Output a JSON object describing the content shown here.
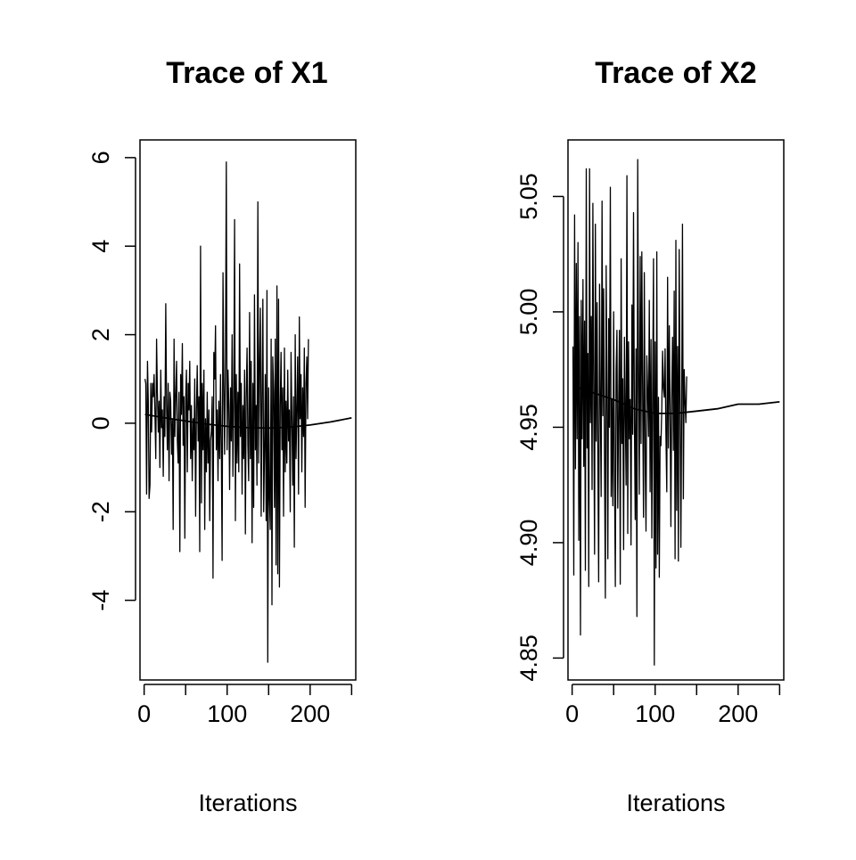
{
  "chart_data": [
    {
      "type": "line",
      "title": "Trace of X1",
      "xlabel": "Iterations",
      "ylabel": "",
      "xlim": [
        -5,
        255
      ],
      "ylim": [
        -5.8,
        6.4
      ],
      "xticks": [
        0,
        100,
        200
      ],
      "xtick_labels": [
        "0",
        "100",
        "200"
      ],
      "xminor_ticks": [
        0,
        50,
        100,
        150,
        200,
        250
      ],
      "yticks": [
        -4,
        -2,
        0,
        2,
        4,
        6
      ],
      "ytick_labels": [
        "-4",
        "-2",
        "0",
        "2",
        "4",
        "6"
      ],
      "grid": false,
      "legend": "none",
      "series": [
        {
          "role": "trace",
          "x_start": 1,
          "x_step": 1,
          "values": [
            1.0,
            0.9,
            -1.6,
            1.4,
            0.5,
            -1.7,
            -1.4,
            0.9,
            -0.2,
            0.9,
            0.6,
            1.1,
            0.2,
            -0.8,
            1.9,
            0.7,
            -0.2,
            0.5,
            -1.0,
            1.2,
            -0.1,
            0.3,
            -1.2,
            0.6,
            -0.3,
            2.7,
            0.4,
            -0.6,
            0.9,
            -1.3,
            0.7,
            0.5,
            -0.7,
            0.1,
            -2.4,
            1.9,
            -0.3,
            0.6,
            1.4,
            -0.4,
            -0.9,
            0.7,
            -2.9,
            1.1,
            0.2,
            1.8,
            -0.5,
            0.6,
            -2.6,
            0.5,
            1.2,
            -1.1,
            0.9,
            0.3,
            1.4,
            -0.8,
            0.4,
            -1.3,
            0.1,
            -0.6,
            1.0,
            -2.1,
            0.3,
            1.3,
            -0.4,
            0.6,
            -2.9,
            4.0,
            -1.8,
            0.9,
            -0.6,
            1.2,
            -2.4,
            0.1,
            -1.1,
            0.7,
            -0.9,
            0.3,
            -2.2,
            -0.4,
            -0.2,
            0.6,
            -3.5,
            1.6,
            1.0,
            2.2,
            -0.6,
            0.3,
            -1.3,
            0.5,
            -0.8,
            1.1,
            -0.5,
            -3.1,
            3.4,
            0.9,
            -0.7,
            1.5,
            5.9,
            -0.6,
            1.2,
            0.4,
            -1.5,
            0.8,
            -0.4,
            2.0,
            -1.2,
            0.6,
            4.6,
            -2.2,
            1.1,
            -0.9,
            0.7,
            -1.1,
            3.6,
            -0.3,
            0.9,
            -1.6,
            0.4,
            -0.8,
            1.2,
            -2.5,
            0.6,
            1.7,
            -0.5,
            -1.3,
            2.5,
            -0.8,
            1.4,
            -2.7,
            0.9,
            -1.9,
            2.9,
            -0.6,
            0.4,
            -1.4,
            5.0,
            -0.9,
            1.3,
            2.6,
            -2.1,
            0.5,
            2.8,
            -2.0,
            -0.7,
            1.1,
            -2.2,
            3.0,
            -5.4,
            0.8,
            -1.7,
            -2.4,
            1.9,
            -4.1,
            1.5,
            0.7,
            -1.9,
            1.9,
            -3.2,
            3.1,
            -3.4,
            2.8,
            -3.7,
            0.4,
            1.6,
            -0.6,
            0.8,
            -2.1,
            1.7,
            -1.1,
            0.5,
            -0.9,
            1.2,
            -0.4,
            0.3,
            -2.0,
            1.6,
            0.2,
            -1.4,
            0.6,
            -2.8,
            2.0,
            -0.8,
            0.3,
            1.5,
            -1.6,
            2.4,
            0.1,
            1.1,
            -1.1,
            0.8,
            -0.3,
            1.7,
            -1.9,
            0.9,
            1.5,
            0.1,
            1.9
          ]
        },
        {
          "role": "smooth",
          "x": [
            1,
            25,
            50,
            75,
            100,
            125,
            150,
            175,
            200,
            225,
            250
          ],
          "values": [
            0.2,
            0.12,
            0.05,
            -0.02,
            -0.07,
            -0.1,
            -0.11,
            -0.09,
            -0.04,
            0.03,
            0.12
          ]
        }
      ]
    },
    {
      "type": "line",
      "title": "Trace of X2",
      "xlabel": "Iterations",
      "ylabel": "",
      "xlim": [
        -5,
        255
      ],
      "ylim": [
        4.8405,
        5.0745
      ],
      "xticks": [
        0,
        100,
        200
      ],
      "xtick_labels": [
        "0",
        "100",
        "200"
      ],
      "xminor_ticks": [
        0,
        50,
        100,
        150,
        200,
        250
      ],
      "yticks": [
        4.85,
        4.9,
        4.95,
        5.0,
        5.05
      ],
      "ytick_labels": [
        "4.85",
        "4.90",
        "4.95",
        "5.00",
        "5.05"
      ],
      "grid": false,
      "legend": "none",
      "series": [
        {
          "role": "trace",
          "x_start": 1,
          "x_step": 1,
          "values": [
            4.985,
            4.886,
            5.042,
            4.932,
            5.021,
            4.945,
            5.03,
            4.901,
            4.998,
            4.86,
            5.005,
            4.945,
            5.014,
            4.933,
            4.996,
            4.888,
            5.062,
            4.941,
            4.982,
            4.881,
            5.062,
            4.952,
            4.998,
            4.923,
            5.047,
            4.961,
            4.895,
            5.038,
            4.944,
            5.004,
            4.937,
            4.883,
            5.012,
            4.961,
            4.92,
            5.048,
            4.955,
            5.01,
            4.934,
            4.876,
            5.02,
            4.967,
            4.893,
            4.997,
            4.95,
            5.054,
            4.92,
            4.962,
            4.916,
            5.0,
            4.935,
            4.881,
            4.975,
            4.992,
            4.915,
            4.959,
            4.992,
            4.882,
            5.023,
            4.943,
            4.971,
            4.897,
            4.989,
            4.958,
            4.925,
            5.059,
            4.904,
            4.987,
            4.945,
            4.962,
            4.899,
            5.003,
            4.947,
            5.043,
            4.952,
            4.91,
            4.984,
            4.868,
            5.066,
            4.975,
            4.921,
            5.024,
            4.943,
            5.026,
            4.96,
            4.911,
            5.017,
            4.935,
            4.905,
            4.981,
            4.965,
            4.946,
            5.005,
            4.922,
            4.988,
            4.902,
            4.963,
            5.023,
            4.847,
            4.987,
            4.889,
            5.026,
            4.895,
            4.963,
            4.885,
            4.946,
            4.942,
            4.958,
            4.983,
            4.967,
            4.963,
            4.984,
            4.948,
            4.922,
            5.015,
            4.941,
            4.994,
            4.958,
            4.907,
            4.962,
            4.989,
            4.94,
            5.009,
            4.893,
            5.031,
            4.914,
            4.985,
            4.892,
            5.027,
            4.96,
            4.898,
            4.958,
            5.038,
            4.919,
            4.975,
            4.962,
            4.952,
            4.972
          ]
        },
        {
          "role": "smooth",
          "x": [
            1,
            25,
            50,
            75,
            100,
            125,
            150,
            175,
            200,
            225,
            250
          ],
          "values": [
            4.968,
            4.965,
            4.962,
            4.958,
            4.956,
            4.956,
            4.957,
            4.958,
            4.96,
            4.96,
            4.961
          ]
        }
      ]
    }
  ]
}
